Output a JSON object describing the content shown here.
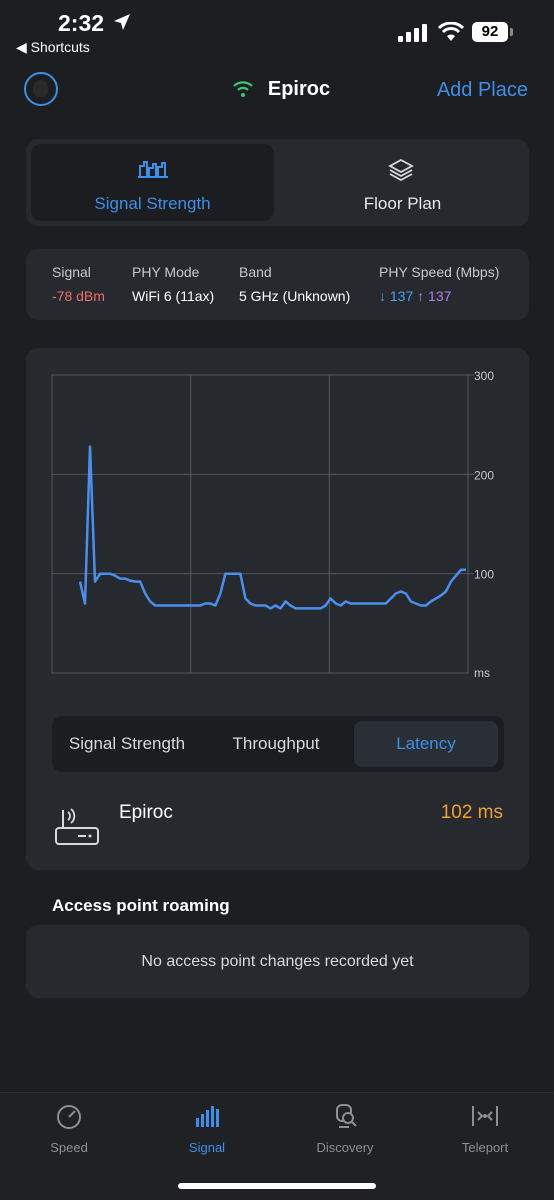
{
  "status": {
    "time": "2:32",
    "back": "◀ Shortcuts",
    "battery": "92"
  },
  "header": {
    "network_name": "Epiroc",
    "add_place": "Add Place"
  },
  "view_tabs": [
    {
      "label": "Signal Strength",
      "active": true,
      "icon": "signal-bars-icon"
    },
    {
      "label": "Floor Plan",
      "active": false,
      "icon": "layers-icon"
    }
  ],
  "info": {
    "signal_label": "Signal",
    "signal_value": "-78 dBm",
    "phy_label": "PHY Mode",
    "phy_value": "WiFi 6 (11ax)",
    "band_label": "Band",
    "band_value": "5 GHz (Unknown)",
    "speed_label": "PHY Speed (Mbps)",
    "speed_down": "↓ 137",
    "speed_up": "↑ 137"
  },
  "chart_data": {
    "type": "line",
    "y_ticks": [
      "300",
      "200",
      "100"
    ],
    "y_unit": "ms",
    "ylim": [
      0,
      300
    ],
    "grid": true,
    "series": [
      {
        "color": "#4a8ff0",
        "values": [
          92,
          70,
          228,
          92,
          100,
          100,
          100,
          98,
          95,
          95,
          93,
          92,
          92,
          80,
          72,
          68,
          68,
          68,
          68,
          68,
          68,
          68,
          68,
          68,
          68,
          70,
          70,
          68,
          80,
          100,
          100,
          100,
          100,
          75,
          70,
          68,
          68,
          68,
          65,
          68,
          65,
          72,
          68,
          65,
          65,
          65,
          65,
          65,
          65,
          68,
          75,
          70,
          68,
          72,
          70,
          70,
          70,
          70,
          70,
          70,
          70,
          70,
          75,
          80,
          82,
          80,
          72,
          70,
          68,
          68,
          72,
          75,
          78,
          82,
          92,
          98,
          104,
          104
        ]
      }
    ]
  },
  "metric_tabs": [
    {
      "label": "Signal Strength",
      "active": false
    },
    {
      "label": "Throughput",
      "active": false
    },
    {
      "label": "Latency",
      "active": true
    }
  ],
  "device": {
    "name": "Epiroc",
    "latency": "102 ms"
  },
  "roaming": {
    "title": "Access point roaming",
    "empty": "No access point changes recorded yet"
  },
  "tab_bar": [
    {
      "label": "Speed",
      "active": false,
      "icon": "speedometer-icon"
    },
    {
      "label": "Signal",
      "active": true,
      "icon": "signal-bars-icon"
    },
    {
      "label": "Discovery",
      "active": false,
      "icon": "discovery-icon"
    },
    {
      "label": "Teleport",
      "active": false,
      "icon": "teleport-icon"
    }
  ],
  "colors": {
    "accent": "#3d8fe8",
    "signal_bad": "#f06a6a",
    "download": "#4aa0f0",
    "upload": "#b07ef0",
    "latency": "#f0a030"
  }
}
